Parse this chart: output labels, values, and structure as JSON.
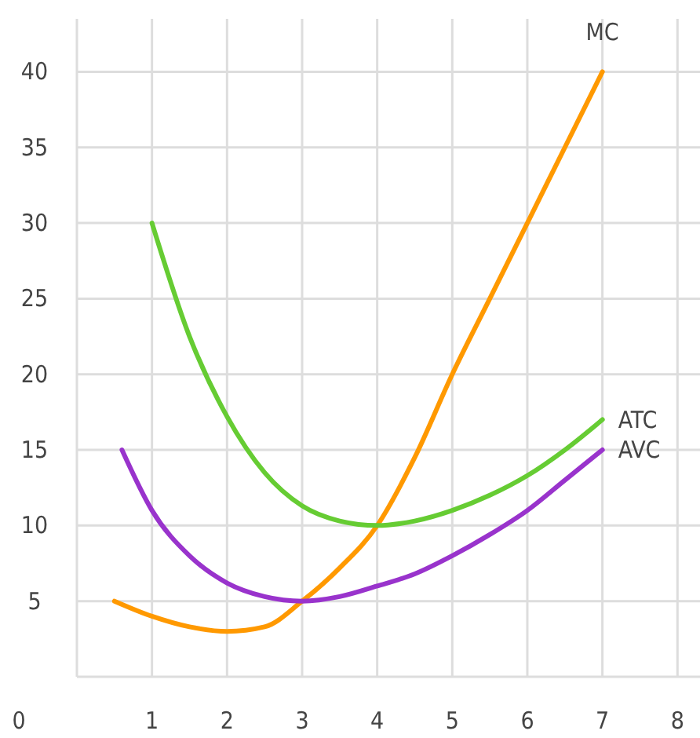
{
  "chart_data": {
    "type": "line",
    "x": [
      0.5,
      1,
      1.5,
      2,
      2.5,
      3,
      3.5,
      4,
      4.5,
      5,
      5.5,
      6,
      6.5,
      7
    ],
    "series": [
      {
        "name": "MC",
        "color": "#ff9900",
        "values": [
          5,
          4,
          3.3,
          3,
          3.3,
          5,
          7.2,
          10,
          14.5,
          20,
          25,
          30,
          35,
          40
        ]
      },
      {
        "name": "ATC",
        "color": "#66cc33",
        "x": [
          1,
          1.5,
          2,
          2.5,
          3,
          3.5,
          4,
          4.5,
          5,
          5.5,
          6,
          6.5,
          7
        ],
        "values": [
          30,
          22.5,
          17.2,
          13.5,
          11.3,
          10.3,
          10,
          10.3,
          11,
          12,
          13.3,
          15,
          17
        ]
      },
      {
        "name": "AVC",
        "color": "#9933cc",
        "x": [
          0.6,
          1,
          1.5,
          2,
          2.5,
          3,
          3.5,
          4,
          4.5,
          5,
          5.5,
          6,
          6.5,
          7
        ],
        "values": [
          15,
          11,
          8,
          6.2,
          5.3,
          5,
          5.3,
          6,
          6.8,
          8,
          9.4,
          11,
          13,
          15
        ]
      }
    ],
    "xlim": [
      0,
      8.3
    ],
    "xticks": [
      1,
      2,
      3,
      4,
      5,
      6,
      7,
      8
    ],
    "ylim": [
      0,
      43.5
    ],
    "yticks": [
      5,
      10,
      15,
      20,
      25,
      30,
      35,
      40
    ],
    "annotations": [
      "0"
    ],
    "grid": true,
    "marker": "none",
    "line_style": "solid"
  }
}
